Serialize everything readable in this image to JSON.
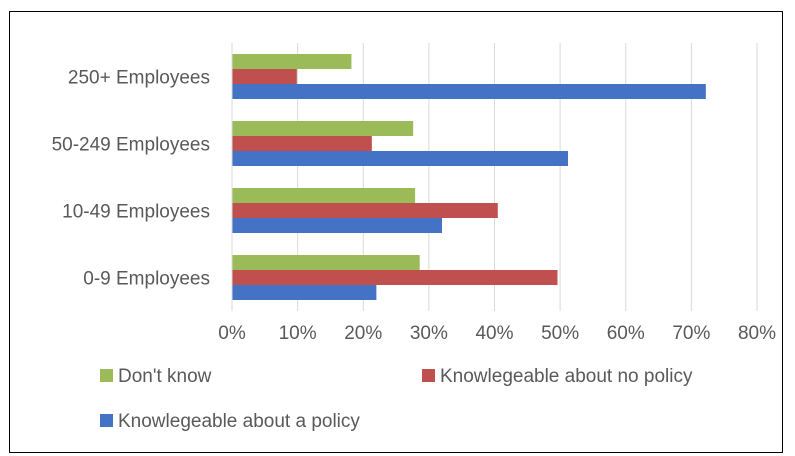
{
  "chart_data": {
    "type": "bar",
    "orientation": "horizontal",
    "categories": [
      "0-9 Employees",
      "10-49 Employees",
      "50-249 Employees",
      "250+ Employees"
    ],
    "series": [
      {
        "name": "Knowlegeable about a policy",
        "color": "#4472C4",
        "values": [
          22,
          32,
          51.2,
          72.2
        ]
      },
      {
        "name": "Knowlegeable about no policy",
        "color": "#C0504D",
        "values": [
          49.6,
          40.5,
          21.31,
          9.88
        ]
      },
      {
        "name": "Don't know",
        "color": "#9BBB59",
        "values": [
          28.6,
          27.9,
          27.6,
          18.2
        ]
      }
    ],
    "xlim": [
      0,
      80
    ],
    "xticks": [
      "0%",
      "10%",
      "20%",
      "30%",
      "40%",
      "50%",
      "60%",
      "70%",
      "80%"
    ],
    "grid": true,
    "legend_position": "bottom",
    "legend_order": [
      "Don't know",
      "Knowlegeable about no policy",
      "Knowlegeable about a policy"
    ]
  }
}
